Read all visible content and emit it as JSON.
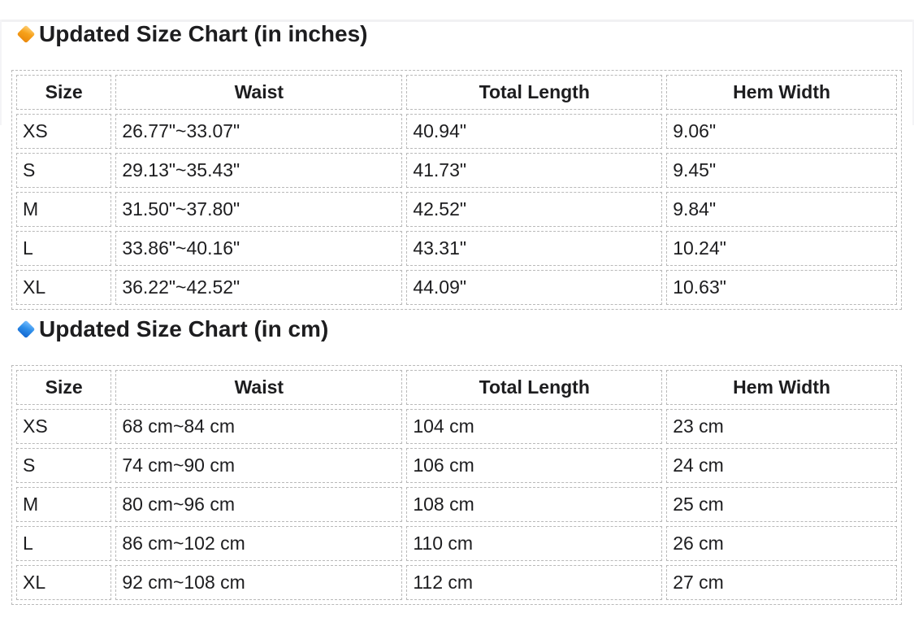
{
  "page": {
    "background": "#ffffff",
    "text_color": "#1d1d1f",
    "table_border_color": "#b9b9b9"
  },
  "icons": {
    "orange_diamond": {
      "name": "orange-diamond-icon",
      "color_start": "#ffd27a",
      "color_end": "#e8860b"
    },
    "blue_diamond": {
      "name": "blue-diamond-icon",
      "color_start": "#7cc0ff",
      "color_end": "#1063ce"
    }
  },
  "sections": [
    {
      "title": "Updated Size Chart (in inches)",
      "table": {
        "headers": [
          "Size",
          "Waist",
          "Total Length",
          "Hem Width"
        ],
        "rows": [
          [
            "XS",
            "26.77\"~33.07\"",
            "40.94\"",
            "9.06\""
          ],
          [
            "S",
            "29.13\"~35.43\"",
            "41.73\"",
            "9.45\""
          ],
          [
            "M",
            "31.50\"~37.80\"",
            "42.52\"",
            "9.84\""
          ],
          [
            "L",
            "33.86\"~40.16\"",
            "43.31\"",
            "10.24\""
          ],
          [
            "XL",
            "36.22\"~42.52\"",
            "44.09\"",
            "10.63\""
          ]
        ]
      }
    },
    {
      "title": "Updated Size Chart (in cm)",
      "table": {
        "headers": [
          "Size",
          "Waist",
          "Total Length",
          "Hem Width"
        ],
        "rows": [
          [
            "XS",
            "68 cm~84 cm",
            "104 cm",
            "23 cm"
          ],
          [
            "S",
            "74 cm~90 cm",
            "106 cm",
            "24 cm"
          ],
          [
            "M",
            "80 cm~96 cm",
            "108 cm",
            "25 cm"
          ],
          [
            "L",
            "86 cm~102 cm",
            "110 cm",
            "26 cm"
          ],
          [
            "XL",
            "92 cm~108 cm",
            "112 cm",
            "27 cm"
          ]
        ]
      }
    }
  ]
}
